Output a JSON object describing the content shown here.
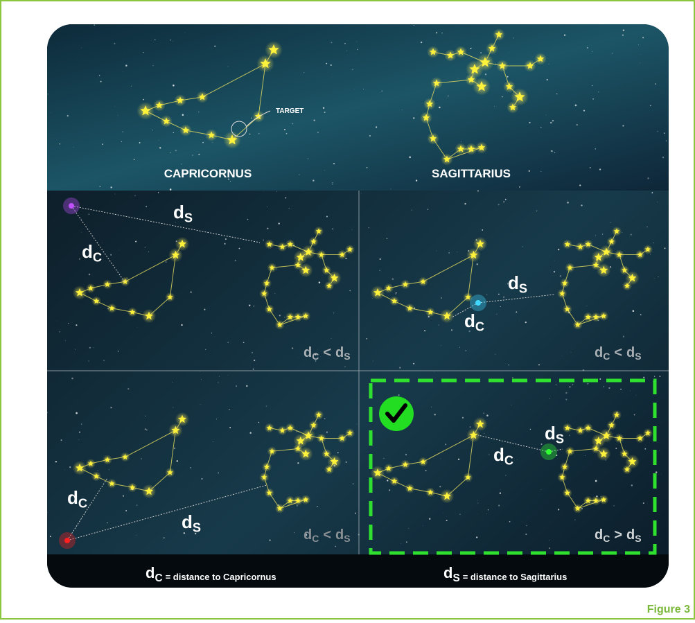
{
  "top": {
    "target": "TARGET",
    "capricornus": "CAPRICORNUS",
    "sagittarius": "SAGITTARIUS"
  },
  "panels": [
    {
      "ds": {
        "main": "d",
        "sub": "S"
      },
      "dc": {
        "main": "d",
        "sub": "C"
      },
      "comparison": {
        "left": {
          "main": "d",
          "sub": "C"
        },
        "op": "<",
        "right": {
          "main": "d",
          "sub": "S"
        }
      }
    },
    {
      "ds": {
        "main": "d",
        "sub": "S"
      },
      "dc": {
        "main": "d",
        "sub": "C"
      },
      "comparison": {
        "left": {
          "main": "d",
          "sub": "C"
        },
        "op": "<",
        "right": {
          "main": "d",
          "sub": "S"
        }
      }
    },
    {
      "ds": {
        "main": "d",
        "sub": "S"
      },
      "dc": {
        "main": "d",
        "sub": "C"
      },
      "comparison": {
        "left": {
          "main": "d",
          "sub": "C"
        },
        "op": "<",
        "right": {
          "main": "d",
          "sub": "S"
        }
      }
    },
    {
      "ds": {
        "main": "d",
        "sub": "S"
      },
      "dc": {
        "main": "d",
        "sub": "C"
      },
      "comparison": {
        "left": {
          "main": "d",
          "sub": "C"
        },
        "op": ">",
        "right": {
          "main": "d",
          "sub": "S"
        }
      }
    }
  ],
  "legend": [
    {
      "symbol": {
        "main": "d",
        "sub": "C"
      },
      "text": "= distance to Capricornus"
    },
    {
      "symbol": {
        "main": "d",
        "sub": "S"
      },
      "text": "= distance to Sagittarius"
    }
  ],
  "caption": "Figure 3"
}
